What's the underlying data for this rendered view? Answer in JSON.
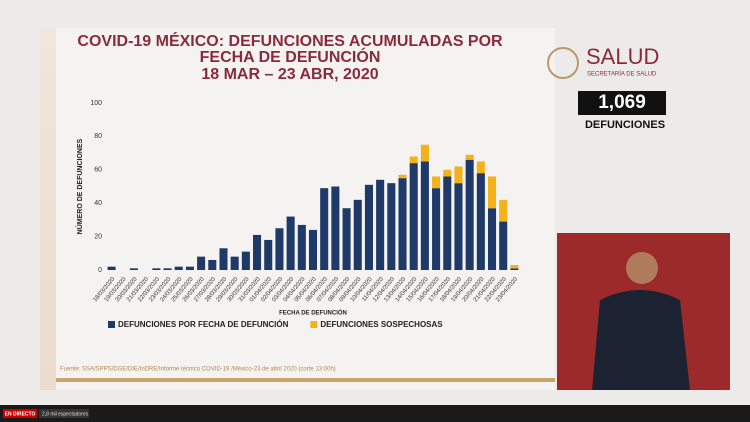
{
  "chart_data": {
    "type": "stacked_bar",
    "title": "COVID-19 MÉXICO: DEFUNCIONES ACUMULADAS POR FECHA DE DEFUNCIÓN",
    "subtitle": "18 MAR – 23 ABR, 2020",
    "y_label": "NÚMERO DE DEFUNCIONES",
    "x_label": "FECHA DE DEFUNCIÓN",
    "categories": [
      "18/03/2020",
      "19/03/2020",
      "20/03/2020",
      "21/03/2020",
      "22/03/2020",
      "23/03/2020",
      "24/03/2020",
      "25/03/2020",
      "26/03/2020",
      "27/03/2020",
      "28/03/2020",
      "29/03/2020",
      "30/03/2020",
      "31/03/2020",
      "01/04/2020",
      "02/04/2020",
      "03/04/2020",
      "04/04/2020",
      "05/04/2020",
      "06/04/2020",
      "07/04/2020",
      "08/04/2020",
      "09/04/2020",
      "10/04/2020",
      "11/04/2020",
      "12/04/2020",
      "13/04/2020",
      "14/04/2020",
      "15/04/2020",
      "16/04/2020",
      "17/04/2020",
      "18/04/2020",
      "19/04/2020",
      "20/04/2020",
      "21/04/2020",
      "22/04/2020",
      "23/04/2020"
    ],
    "series": [
      {
        "name": "DEFUNCIONES POR FECHA DE DEFUNCIÓN",
        "color": "#1f3a68",
        "values": [
          2,
          0,
          1,
          0,
          1,
          1,
          2,
          2,
          8,
          6,
          13,
          8,
          11,
          21,
          18,
          25,
          32,
          27,
          24,
          49,
          50,
          37,
          42,
          51,
          54,
          52,
          55,
          64,
          65,
          49,
          56,
          52,
          66,
          58,
          37,
          29,
          1
        ]
      },
      {
        "name": "DEFUNCIONES SOSPECHOSAS",
        "color": "#f2b21b",
        "values": [
          0,
          0,
          0,
          0,
          0,
          0,
          0,
          0,
          0,
          0,
          0,
          0,
          0,
          0,
          0,
          0,
          0,
          0,
          0,
          0,
          0,
          0,
          0,
          0,
          0,
          0,
          2,
          4,
          10,
          7,
          4,
          10,
          3,
          7,
          19,
          13,
          2
        ]
      }
    ],
    "ylim": [
      0,
      100
    ],
    "yticks": [
      0,
      20,
      40,
      60,
      80,
      100
    ],
    "grid": false
  },
  "brand": {
    "name": "SALUD",
    "subtitle": "SECRETARÍA DE SALUD"
  },
  "counter": {
    "value": "1,069",
    "label": "DEFUNCIONES"
  },
  "footer": {
    "source": "Fuente: SSA/SPPS/DGE/DIE/InDRE/Informe técnico COVID-19 /México-23 de abril 2020 (corte 13:00h)"
  },
  "stream": {
    "live": "EN DIRECTO",
    "viewers": "2,8 mil espectadores"
  }
}
